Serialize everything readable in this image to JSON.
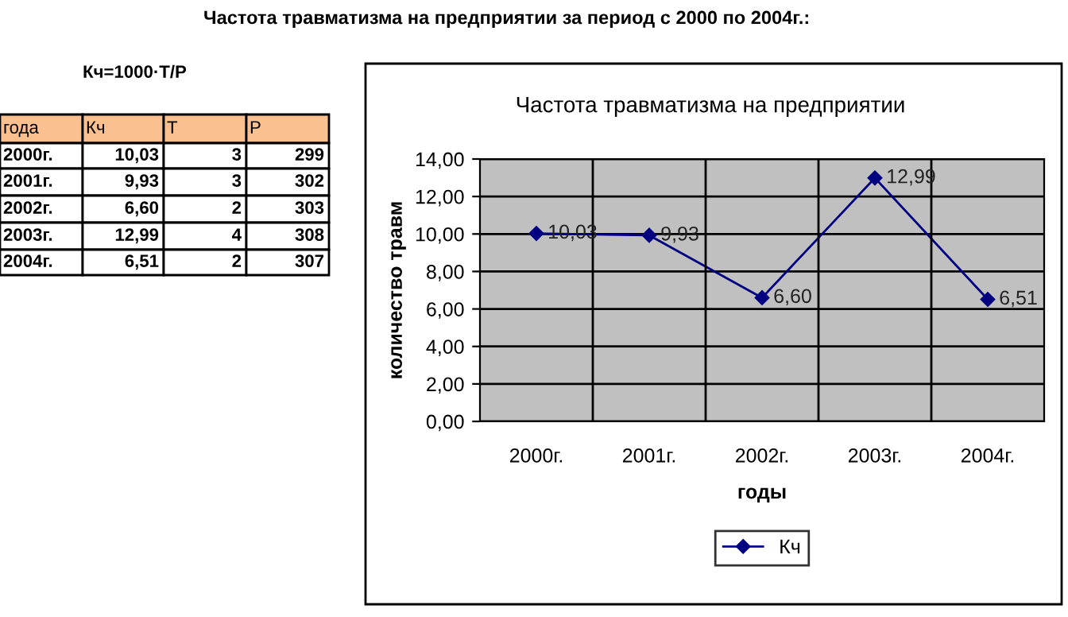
{
  "chart_data": {
    "type": "line",
    "title": "Частота травматизма на предприятии",
    "xlabel": "годы",
    "ylabel": "количество травм",
    "categories": [
      "2000г.",
      "2001г.",
      "2002г.",
      "2003г.",
      "2004г."
    ],
    "series": [
      {
        "name": "Кч",
        "color": "#000080",
        "values": [
          10.03,
          9.93,
          6.6,
          12.99,
          6.51
        ],
        "value_labels": [
          "10,03",
          "9,93",
          "6,60",
          "12,99",
          "6,51"
        ]
      }
    ],
    "ylim": [
      0,
      14
    ],
    "yticks": [
      {
        "value": 0,
        "label": "0,00"
      },
      {
        "value": 2,
        "label": "2,00"
      },
      {
        "value": 4,
        "label": "4,00"
      },
      {
        "value": 6,
        "label": "6,00"
      },
      {
        "value": 8,
        "label": "8,00"
      },
      {
        "value": 10,
        "label": "10,00"
      },
      {
        "value": 12,
        "label": "12,00"
      },
      {
        "value": 14,
        "label": "14,00"
      }
    ],
    "grid": true,
    "legend": "bottom",
    "marker": "diamond",
    "line_style": "solid",
    "annotations": [
      "Частота травматизма на предприятии за период с 2000 по 2004г.:",
      "Кч=1000·Т/Р",
      "года",
      "Кч",
      "Т",
      "Р",
      "2000г.",
      "10,03",
      "3",
      "299",
      "2001г.",
      "9,93",
      "3",
      "302",
      "2002г.",
      "6,60",
      "2",
      "303",
      "2003г.",
      "12,99",
      "4",
      "308",
      "2004г.",
      "6,51",
      "2",
      "307"
    ]
  }
}
